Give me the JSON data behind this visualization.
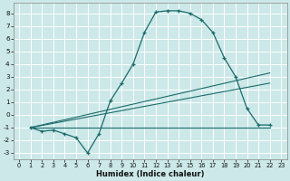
{
  "xlabel": "Humidex (Indice chaleur)",
  "xlim": [
    -0.5,
    23.5
  ],
  "ylim": [
    -3.5,
    8.8
  ],
  "xticks": [
    0,
    1,
    2,
    3,
    4,
    5,
    6,
    7,
    8,
    9,
    10,
    11,
    12,
    13,
    14,
    15,
    16,
    17,
    18,
    19,
    20,
    21,
    22,
    23
  ],
  "yticks": [
    -3,
    -2,
    -1,
    0,
    1,
    2,
    3,
    4,
    5,
    6,
    7,
    8
  ],
  "bg_color": "#cce8e8",
  "grid_color": "#aad4d4",
  "line_color": "#1a6b6b",
  "curve": {
    "x": [
      1,
      2,
      3,
      4,
      5,
      6,
      7,
      8,
      9,
      10,
      11,
      12,
      13,
      14,
      15,
      16,
      17,
      18,
      19,
      20,
      21,
      22
    ],
    "y": [
      -1.0,
      -1.3,
      -1.2,
      -1.5,
      -1.8,
      -3.0,
      -1.5,
      1.1,
      2.5,
      4.0,
      6.5,
      8.1,
      8.2,
      8.2,
      8.0,
      7.5,
      6.5,
      4.5,
      3.0,
      0.5,
      -0.8,
      -0.8
    ]
  },
  "straight_lines": [
    {
      "x": [
        1,
        22
      ],
      "y": [
        -1.0,
        -1.0
      ]
    },
    {
      "x": [
        1,
        22
      ],
      "y": [
        -1.0,
        2.5
      ]
    },
    {
      "x": [
        1,
        22
      ],
      "y": [
        -1.0,
        3.3
      ]
    }
  ]
}
